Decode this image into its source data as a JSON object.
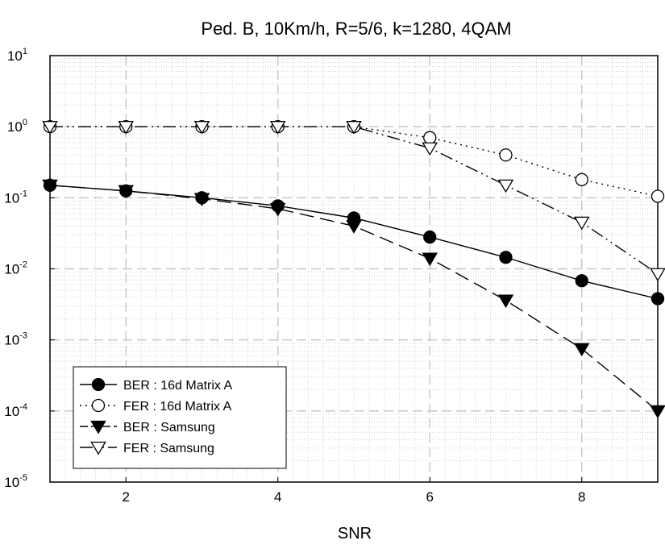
{
  "chart_data": {
    "type": "line",
    "title": "Ped. B, 10Km/h, R=5/6, k=1280, 4QAM",
    "xlabel": "SNR",
    "ylabel": "",
    "xlim": [
      1,
      9
    ],
    "ylim": [
      1e-05,
      10
    ],
    "yscale": "log",
    "grid": true,
    "legend_position": "bottom-left",
    "x_ticks": [
      "2",
      "4",
      "6",
      "8"
    ],
    "y_ticks": [
      {
        "base": "10",
        "exp": "-5"
      },
      {
        "base": "10",
        "exp": "-4"
      },
      {
        "base": "10",
        "exp": "-3"
      },
      {
        "base": "10",
        "exp": "-2"
      },
      {
        "base": "10",
        "exp": "-1"
      },
      {
        "base": "10",
        "exp": "0"
      },
      {
        "base": "10",
        "exp": "1"
      }
    ],
    "x": [
      1,
      2,
      3,
      4,
      5,
      6,
      7,
      8,
      9
    ],
    "series": [
      {
        "name": "BER : 16d Matrix A",
        "marker": "circle-filled",
        "line": "solid",
        "values": [
          0.15,
          0.125,
          0.1,
          0.077,
          0.052,
          0.028,
          0.0145,
          0.0068,
          0.0038
        ]
      },
      {
        "name": "FER : 16d Matrix A",
        "marker": "circle-open",
        "line": "dotted",
        "values": [
          1.0,
          1.0,
          1.0,
          1.0,
          1.0,
          0.7,
          0.4,
          0.18,
          0.105
        ]
      },
      {
        "name": "BER : Samsung",
        "marker": "triangle-down-filled",
        "line": "dashed",
        "values": [
          0.15,
          0.125,
          0.097,
          0.07,
          0.04,
          0.014,
          0.0036,
          0.00075,
          0.0001
        ]
      },
      {
        "name": "FER : Samsung",
        "marker": "triangle-down-open",
        "line": "dashdotdot",
        "values": [
          1.0,
          1.0,
          1.0,
          1.0,
          1.0,
          0.5,
          0.15,
          0.045,
          0.0085
        ]
      }
    ]
  }
}
